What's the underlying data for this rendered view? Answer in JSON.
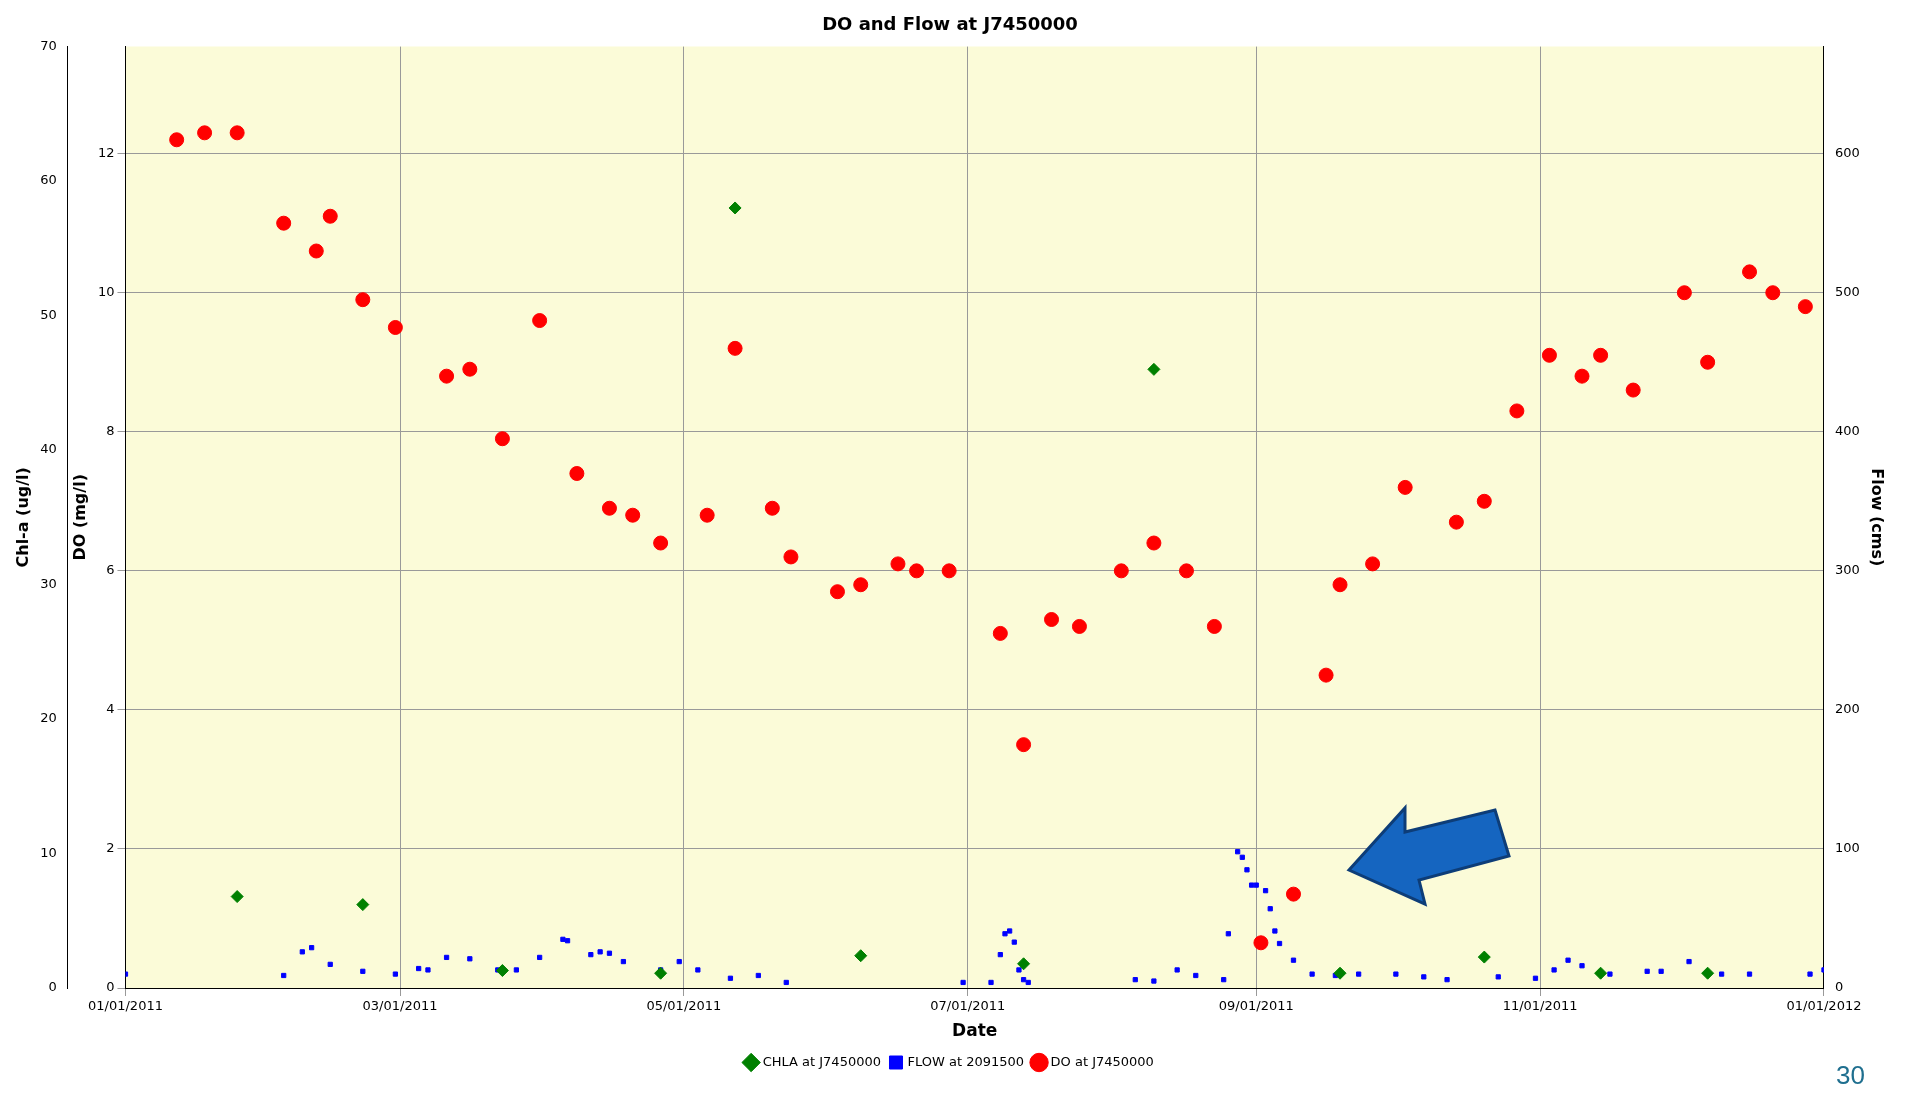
{
  "chart_data": {
    "type": "scatter",
    "title": "DO and Flow at J7450000",
    "xlabel": "Date",
    "ylabel": "Chl-a (ug/l)",
    "y2label": "DO (mg/l)",
    "y3label": "Flow (cms)",
    "xlim": [
      "2011-01-01",
      "2012-01-01"
    ],
    "xticks": [
      {
        "value": "2011-01-01",
        "label": "01/01/2011"
      },
      {
        "value": "2011-03-01",
        "label": "03/01/2011"
      },
      {
        "value": "2011-05-01",
        "label": "05/01/2011"
      },
      {
        "value": "2011-07-01",
        "label": "07/01/2011"
      },
      {
        "value": "2011-09-01",
        "label": "09/01/2011"
      },
      {
        "value": "2011-11-01",
        "label": "11/01/2011"
      },
      {
        "value": "2012-01-01",
        "label": "01/01/2012"
      }
    ],
    "ylim": [
      0,
      70
    ],
    "yticks": [
      0,
      10,
      20,
      30,
      40,
      50,
      60,
      70
    ],
    "y2lim": [
      0,
      13.54
    ],
    "y2ticks": [
      0,
      2,
      4,
      6,
      8,
      10,
      12
    ],
    "y3lim": [
      0,
      677
    ],
    "y3ticks": [
      0,
      100,
      200,
      300,
      400,
      500,
      600
    ],
    "grid": true,
    "legend": "bottom",
    "series": [
      {
        "name": "CHLA at J7450000",
        "color": "#008000",
        "marker": "diamond",
        "x": [
          "2011-01-25",
          "2011-02-21",
          "2011-03-23",
          "2011-04-26",
          "2011-05-12",
          "2011-06-08",
          "2011-07-13",
          "2011-08-10",
          "2011-09-19",
          "2011-10-20",
          "2011-11-14",
          "2011-12-07"
        ],
        "values": [
          6.8,
          6.2,
          1.3,
          1.1,
          58,
          2.4,
          1.8,
          46,
          1.1,
          2.3,
          1.1,
          1.1
        ]
      },
      {
        "name": "FLOW at 2091500",
        "color": "#0000ff",
        "marker": "square",
        "axis": "y3",
        "x": [
          "2011-01-01",
          "2011-02-04",
          "2011-02-08",
          "2011-02-10",
          "2011-02-14",
          "2011-02-21",
          "2011-02-28",
          "2011-03-05",
          "2011-03-07",
          "2011-03-11",
          "2011-03-16",
          "2011-03-22",
          "2011-03-26",
          "2011-03-31",
          "2011-04-05",
          "2011-04-06",
          "2011-04-11",
          "2011-04-13",
          "2011-04-15",
          "2011-04-18",
          "2011-04-26",
          "2011-04-30",
          "2011-05-04",
          "2011-05-11",
          "2011-05-17",
          "2011-05-23",
          "2011-06-30",
          "2011-07-06",
          "2011-07-08",
          "2011-07-09",
          "2011-07-10",
          "2011-07-11",
          "2011-07-12",
          "2011-07-13",
          "2011-07-14",
          "2011-08-06",
          "2011-08-10",
          "2011-08-15",
          "2011-08-19",
          "2011-08-25",
          "2011-08-26",
          "2011-08-28",
          "2011-08-29",
          "2011-08-30",
          "2011-08-31",
          "2011-09-01",
          "2011-09-03",
          "2011-09-04",
          "2011-09-05",
          "2011-09-06",
          "2011-09-09",
          "2011-09-13",
          "2011-09-18",
          "2011-09-23",
          "2011-10-01",
          "2011-10-07",
          "2011-10-12",
          "2011-10-23",
          "2011-10-31",
          "2011-11-04",
          "2011-11-07",
          "2011-11-10",
          "2011-11-16",
          "2011-11-24",
          "2011-11-27",
          "2011-12-03",
          "2011-12-10",
          "2011-12-16",
          "2011-12-29",
          "2012-01-01"
        ],
        "values": [
          10,
          9,
          26,
          29,
          17,
          12,
          10,
          14,
          13,
          22,
          21,
          13,
          13,
          22,
          35,
          34,
          24,
          26,
          25,
          19,
          13,
          19,
          13,
          7,
          9,
          4,
          4,
          4,
          24,
          39,
          41,
          33,
          13,
          6,
          4,
          6,
          5,
          13,
          9,
          6,
          39,
          98,
          94,
          85,
          74,
          74,
          70,
          57,
          41,
          32,
          20,
          10,
          9,
          10,
          10,
          8,
          6,
          8,
          7,
          13,
          20,
          16,
          10,
          12,
          12,
          19,
          10,
          10,
          10,
          13
        ]
      },
      {
        "name": "DO at J7450000",
        "color": "#ff0000",
        "marker": "circle",
        "axis": "y2",
        "x": [
          "2011-01-12",
          "2011-01-18",
          "2011-01-25",
          "2011-02-04",
          "2011-02-11",
          "2011-02-14",
          "2011-02-21",
          "2011-02-28",
          "2011-03-11",
          "2011-03-16",
          "2011-03-23",
          "2011-03-31",
          "2011-04-08",
          "2011-04-15",
          "2011-04-20",
          "2011-04-26",
          "2011-05-06",
          "2011-05-12",
          "2011-05-20",
          "2011-05-24",
          "2011-06-03",
          "2011-06-08",
          "2011-06-16",
          "2011-06-20",
          "2011-06-27",
          "2011-07-08",
          "2011-07-13",
          "2011-07-19",
          "2011-07-25",
          "2011-08-03",
          "2011-08-10",
          "2011-08-17",
          "2011-08-23",
          "2011-09-02",
          "2011-09-09",
          "2011-09-16",
          "2011-09-19",
          "2011-09-26",
          "2011-10-03",
          "2011-10-14",
          "2011-10-20",
          "2011-10-27",
          "2011-11-03",
          "2011-11-10",
          "2011-11-14",
          "2011-11-21",
          "2011-12-02",
          "2011-12-07",
          "2011-12-16",
          "2011-12-21",
          "2011-12-28"
        ],
        "values": [
          12.2,
          12.3,
          12.3,
          11,
          10.6,
          11.1,
          9.9,
          9.5,
          8.8,
          8.9,
          7.9,
          9.6,
          7.4,
          6.9,
          6.8,
          6.4,
          6.8,
          9.2,
          6.9,
          6.2,
          5.7,
          5.8,
          6.1,
          6,
          6,
          5.1,
          3.5,
          5.3,
          5.2,
          6,
          6.4,
          6,
          5.2,
          0.65,
          1.35,
          4.5,
          5.8,
          6.1,
          7.2,
          6.7,
          7,
          8.3,
          9.1,
          8.8,
          9.1,
          8.6,
          10,
          9,
          10.3,
          10,
          9.8
        ]
      }
    ],
    "annotations": [
      "30"
    ]
  }
}
